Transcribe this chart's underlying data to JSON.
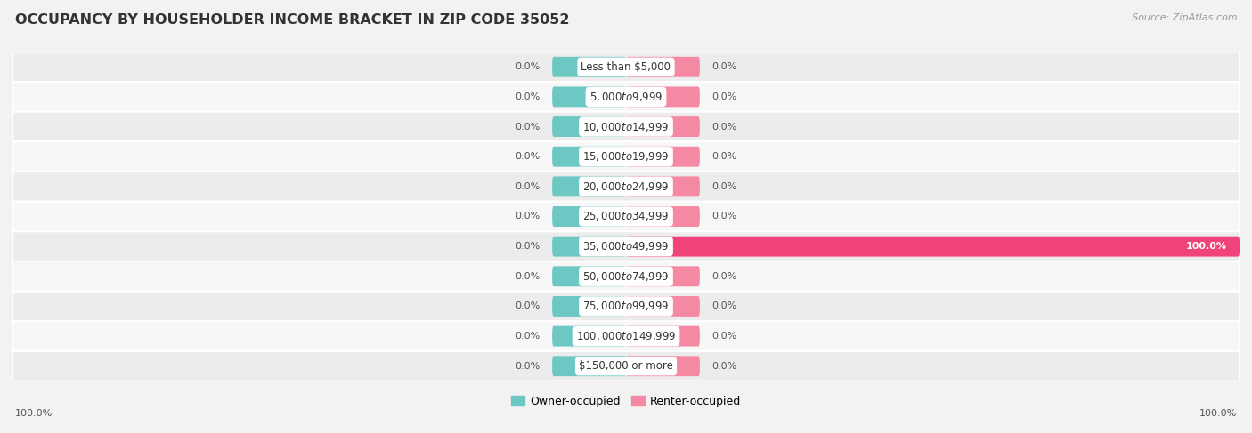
{
  "title": "OCCUPANCY BY HOUSEHOLDER INCOME BRACKET IN ZIP CODE 35052",
  "source": "Source: ZipAtlas.com",
  "categories": [
    "Less than $5,000",
    "$5,000 to $9,999",
    "$10,000 to $14,999",
    "$15,000 to $19,999",
    "$20,000 to $24,999",
    "$25,000 to $34,999",
    "$35,000 to $49,999",
    "$50,000 to $74,999",
    "$75,000 to $99,999",
    "$100,000 to $149,999",
    "$150,000 or more"
  ],
  "owner_values": [
    0.0,
    0.0,
    0.0,
    0.0,
    0.0,
    0.0,
    0.0,
    0.0,
    0.0,
    0.0,
    0.0
  ],
  "renter_values": [
    0.0,
    0.0,
    0.0,
    0.0,
    0.0,
    0.0,
    100.0,
    0.0,
    0.0,
    0.0,
    0.0
  ],
  "owner_color": "#6dc8c4",
  "owner_color_full": "#6dc8c4",
  "renter_color": "#f589a3",
  "renter_color_full": "#f0437a",
  "bg_color": "#f2f2f2",
  "row_bg_color": "#ececec",
  "row_alt_color": "#f7f7f7",
  "bar_stub_owner": "#6dc8c4",
  "bar_stub_renter": "#f589a3",
  "title_fontsize": 11.5,
  "source_fontsize": 8,
  "label_fontsize": 8,
  "category_fontsize": 8.5,
  "legend_fontsize": 9,
  "bottom_left_label": "100.0%",
  "bottom_right_label": "100.0%"
}
